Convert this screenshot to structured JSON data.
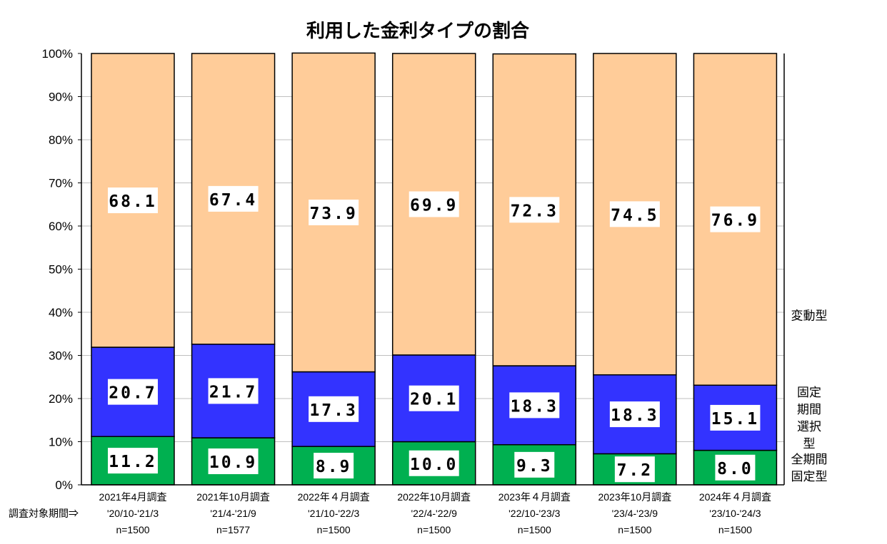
{
  "chart_data": {
    "type": "bar",
    "stacked": true,
    "title": "利用した金利タイプの割合",
    "ylim": [
      0,
      100
    ],
    "y_ticks": [
      "0%",
      "10%",
      "20%",
      "30%",
      "40%",
      "50%",
      "60%",
      "70%",
      "80%",
      "90%",
      "100%"
    ],
    "row_header": "調査対象期間⇒",
    "categories": [
      {
        "survey": "2021年4月調査",
        "period": "'20/10-'21/3",
        "n": "n=1500"
      },
      {
        "survey": "2021年10月調査",
        "period": "'21/4-'21/9",
        "n": "n=1577"
      },
      {
        "survey": "2022年４月調査",
        "period": "'21/10-'22/3",
        "n": "n=1500"
      },
      {
        "survey": "2022年10月調査",
        "period": "'22/4-'22/9",
        "n": "n=1500"
      },
      {
        "survey": "2023年４月調査",
        "period": "'22/10-'23/3",
        "n": "n=1500"
      },
      {
        "survey": "2023年10月調査",
        "period": "'23/4-'23/9",
        "n": "n=1500"
      },
      {
        "survey": "2024年４月調査",
        "period": "'23/10-'24/3",
        "n": "n=1500"
      }
    ],
    "series": [
      {
        "name": [
          "全期間",
          "固定型"
        ],
        "color": "#00b050",
        "values": [
          11.2,
          10.9,
          8.9,
          10.0,
          9.3,
          7.2,
          8.0
        ],
        "labels": [
          "11.2",
          "10.9",
          "8.9",
          "10.0",
          "9.3",
          "7.2",
          "8.0"
        ]
      },
      {
        "name": [
          "固定",
          "期間",
          "選択",
          "型"
        ],
        "color": "#3333ff",
        "values": [
          20.7,
          21.7,
          17.3,
          20.1,
          18.3,
          18.3,
          15.1
        ],
        "labels": [
          "20.7",
          "21.7",
          "17.3",
          "20.1",
          "18.3",
          "18.3",
          "15.1"
        ]
      },
      {
        "name": [
          "変動型"
        ],
        "color": "#ffcc99",
        "values": [
          68.1,
          67.4,
          73.9,
          69.9,
          72.3,
          74.5,
          76.9
        ],
        "labels": [
          "68.1",
          "67.4",
          "73.9",
          "69.9",
          "72.3",
          "74.5",
          "76.9"
        ]
      }
    ]
  }
}
